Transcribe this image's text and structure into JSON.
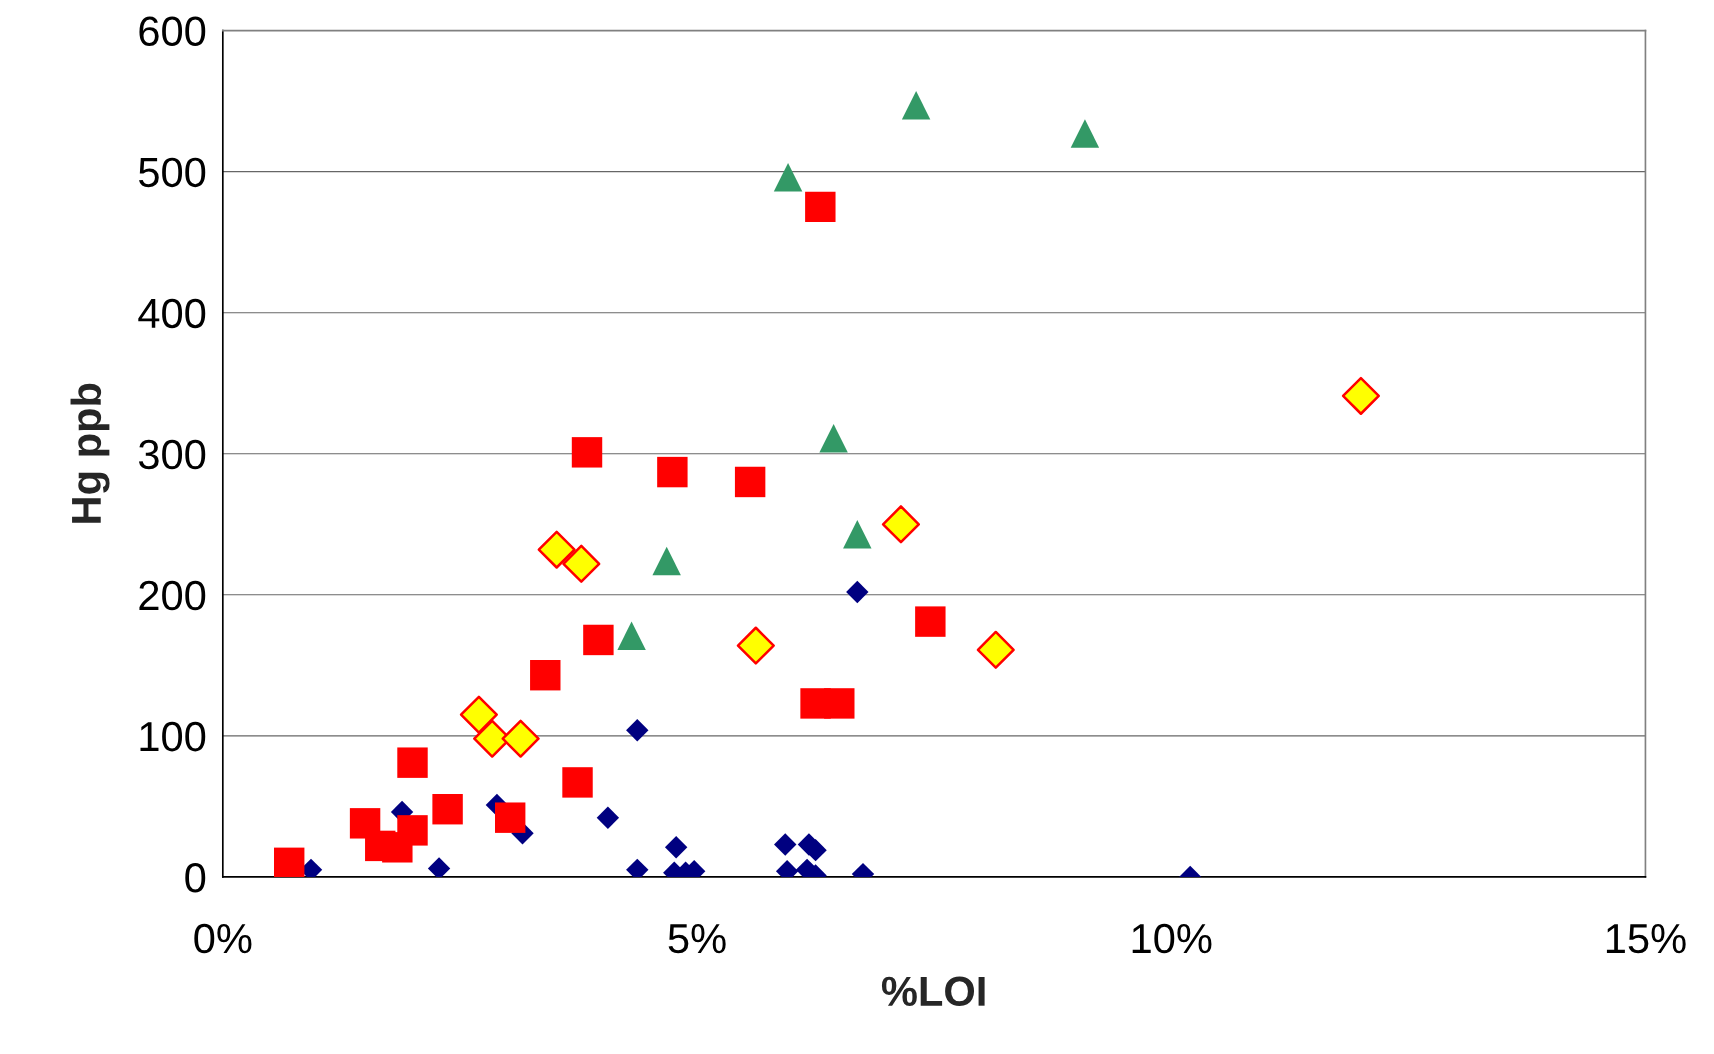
{
  "chart_data": {
    "type": "scatter",
    "xlabel": "%LOI",
    "ylabel": "Hg ppb",
    "xlim": [
      0,
      15
    ],
    "xticks": [
      {
        "value": 0,
        "label": "0%"
      },
      {
        "value": 5,
        "label": "5%"
      },
      {
        "value": 10,
        "label": "10%"
      },
      {
        "value": 15,
        "label": "15%"
      }
    ],
    "ylim": [
      0,
      600
    ],
    "yticks": [
      0,
      100,
      200,
      300,
      400,
      500,
      600
    ],
    "grid": "y",
    "legend": false,
    "series": [
      {
        "color": "#000080",
        "marker": "diamond",
        "x": [
          0.93,
          1.89,
          2.28,
          2.89,
          3.16,
          4.06,
          4.37,
          4.37,
          4.78,
          4.76,
          4.88,
          4.97,
          5.93,
          5.95,
          6.18,
          6.25,
          6.16,
          6.25,
          6.69,
          6.75,
          10.2
        ],
        "values": [
          5,
          46,
          6,
          51,
          31,
          42,
          104,
          5,
          21,
          3,
          3,
          4,
          23,
          4,
          23,
          19,
          5,
          1,
          202,
          2,
          0
        ]
      },
      {
        "color": "#ff0000",
        "marker": "square",
        "x": [
          0.7,
          1.46,
          1.5,
          1.66,
          1.84,
          2.0,
          2.0,
          2.37,
          3.03,
          3.74,
          3.4,
          3.96,
          3.84,
          4.74,
          5.56,
          6.3,
          6.25,
          6.5,
          7.46
        ],
        "values": [
          10,
          null,
          38,
          22,
          21,
          81,
          33,
          48,
          42,
          67,
          143,
          168,
          301,
          287,
          280,
          475,
          123,
          123,
          181
        ]
      },
      {
        "color": "#ffff00",
        "marker": "diamond",
        "x": [
          2.7,
          2.84,
          3.14,
          3.52,
          3.78,
          5.62,
          7.15,
          8.15,
          12.0
        ],
        "values": [
          115,
          98,
          98,
          232,
          222,
          164,
          250,
          161,
          341
        ]
      },
      {
        "color": "#339966",
        "marker": "triangle",
        "x": [
          4.31,
          4.68,
          5.96,
          6.44,
          6.69,
          7.31,
          9.09
        ],
        "values": [
          171,
          224,
          496,
          311,
          243,
          547,
          527
        ]
      }
    ]
  }
}
